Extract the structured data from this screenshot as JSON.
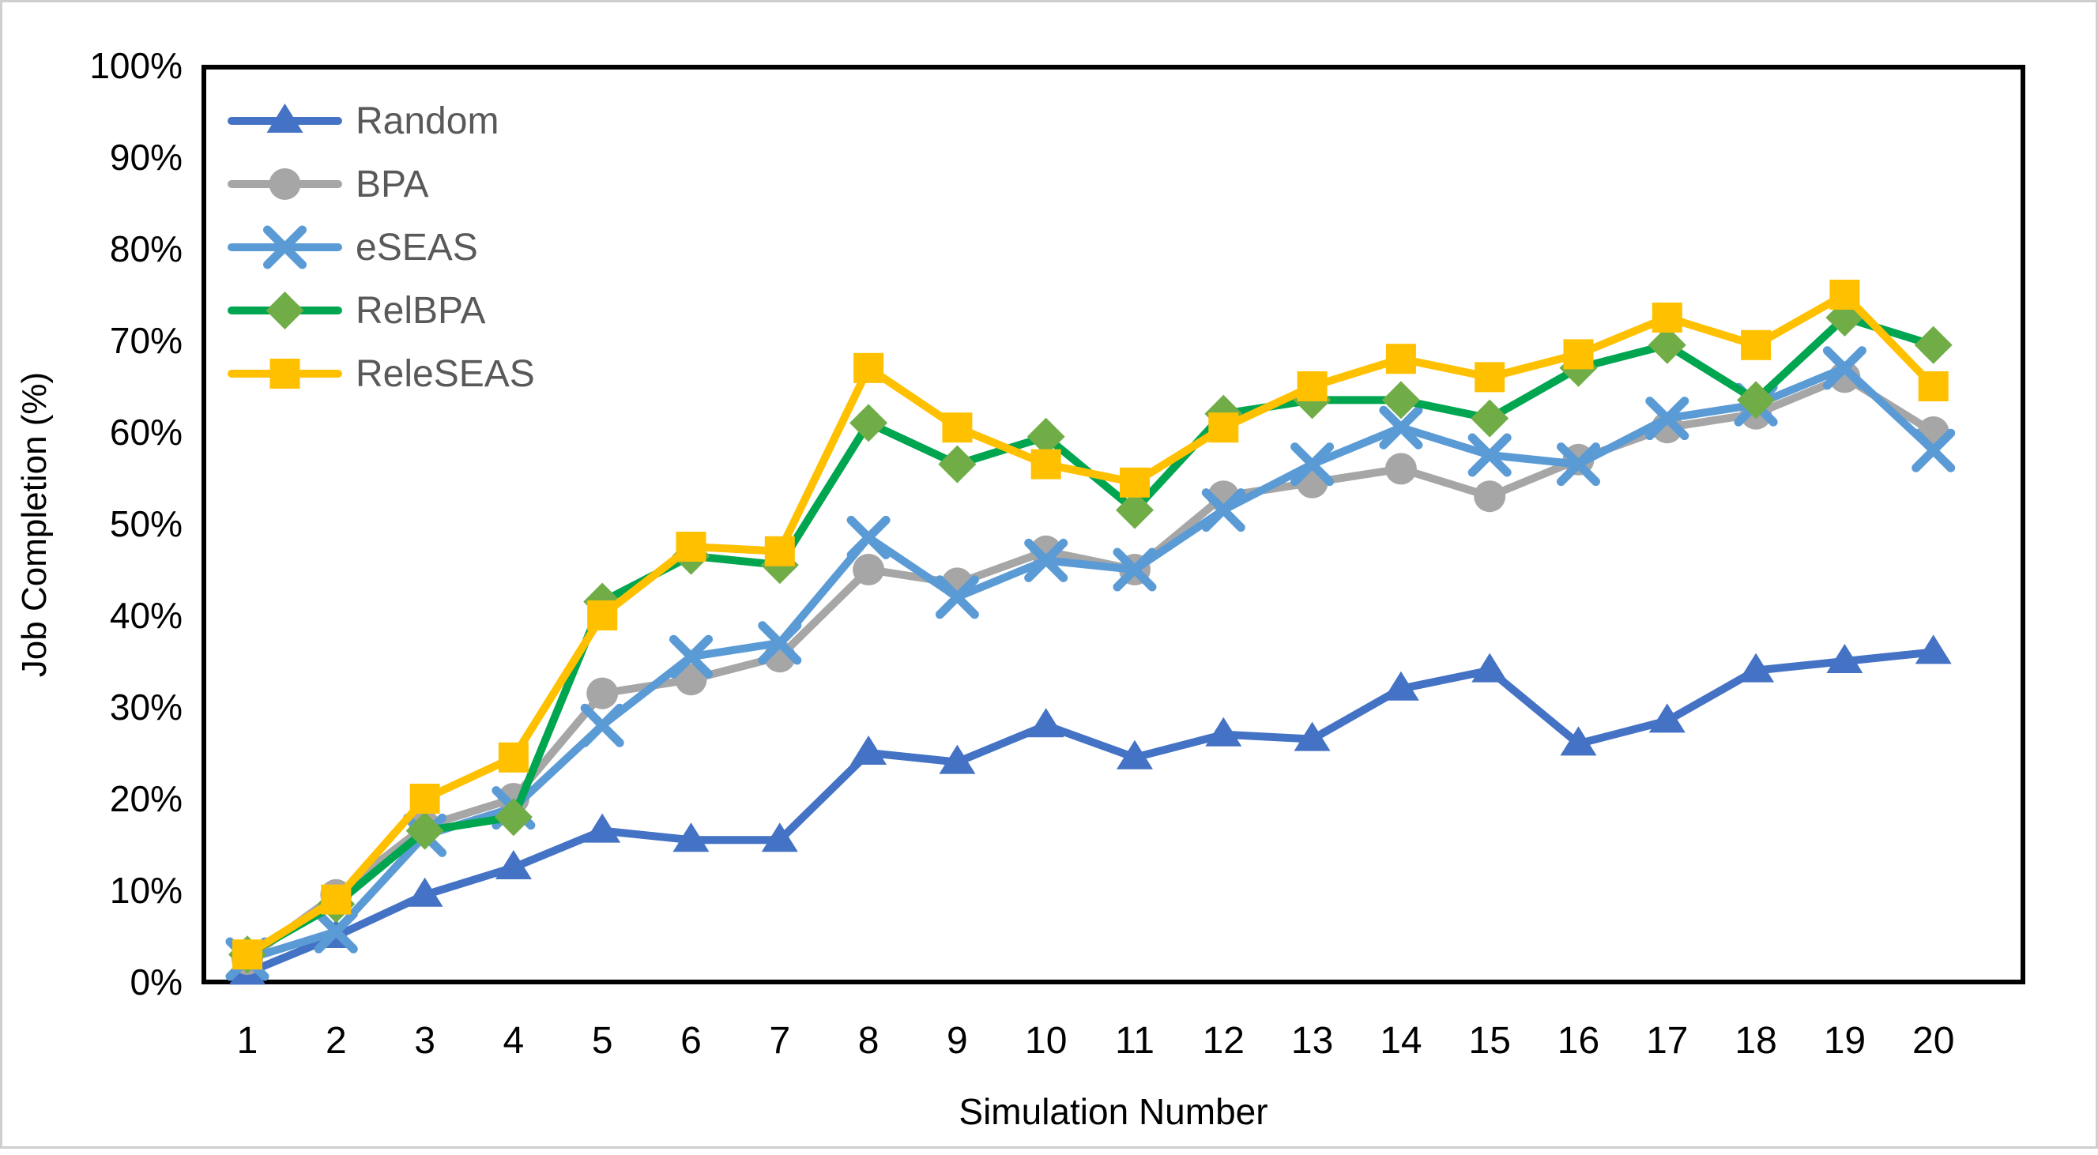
{
  "figure": {
    "background": "#ffffff",
    "outer_border_color": "#cfcfcf",
    "plot_border_color": "#000000"
  },
  "chart_data": {
    "type": "line",
    "title": "",
    "xlabel": "Simulation Number",
    "ylabel": "Job Completion (%)",
    "x_tick_labels": [
      "1",
      "2",
      "3",
      "4",
      "5",
      "6",
      "7",
      "8",
      "9",
      "10",
      "11",
      "12",
      "13",
      "14",
      "15",
      "16",
      "17",
      "18",
      "19",
      "20"
    ],
    "y_tick_labels": [
      "0%",
      "10%",
      "20%",
      "30%",
      "40%",
      "50%",
      "60%",
      "70%",
      "80%",
      "90%",
      "100%"
    ],
    "ylim": [
      0,
      100
    ],
    "xlim": [
      1,
      20
    ],
    "grid": false,
    "legend_position": "top-left-inside",
    "axis_text_color": "#000000",
    "legend_text_color": "#595959",
    "categories": [
      1,
      2,
      3,
      4,
      5,
      6,
      7,
      8,
      9,
      10,
      11,
      12,
      13,
      14,
      15,
      16,
      17,
      18,
      19,
      20
    ],
    "series": [
      {
        "name": "Random",
        "color": "#4472C4",
        "marker": "triangle",
        "marker_color": "#4472C4",
        "values": [
          1,
          5,
          9.5,
          12.5,
          16.5,
          15.5,
          15.5,
          25,
          24,
          28,
          24.5,
          27,
          26.5,
          32,
          34,
          26,
          28.5,
          34,
          35,
          36
        ]
      },
      {
        "name": "BPA",
        "color": "#A6A6A6",
        "marker": "circle",
        "marker_color": "#A6A6A6",
        "values": [
          2.5,
          9.5,
          17,
          20,
          31.5,
          33,
          35.5,
          45,
          43.5,
          47,
          45,
          53,
          54.5,
          56,
          53,
          57,
          60.5,
          62,
          66,
          60
        ]
      },
      {
        "name": "eSEAS",
        "color": "#5B9BD5",
        "marker": "x",
        "marker_color": "#5B9BD5",
        "values": [
          2.5,
          5.5,
          16,
          19,
          28,
          35.5,
          37,
          48.5,
          42,
          46,
          45,
          51.5,
          56.5,
          60.5,
          57.5,
          56.5,
          61.5,
          63,
          67,
          58
        ]
      },
      {
        "name": "RelBPA",
        "color": "#00A550",
        "marker": "diamond",
        "marker_color": "#70AD47",
        "values": [
          3,
          8.5,
          16.5,
          18,
          41.5,
          46.5,
          45.5,
          61,
          56.5,
          59.5,
          51.5,
          62,
          63.5,
          63.5,
          61.5,
          67,
          69.5,
          63.5,
          72.5,
          69.5
        ]
      },
      {
        "name": "ReleSEAS",
        "color": "#FFC000",
        "marker": "square",
        "marker_color": "#FFC000",
        "values": [
          3,
          9,
          20,
          24.5,
          40,
          47.5,
          47,
          67,
          60.5,
          56.5,
          54.5,
          60.5,
          65,
          68,
          66,
          68.5,
          72.5,
          69.5,
          75,
          65
        ]
      }
    ]
  }
}
